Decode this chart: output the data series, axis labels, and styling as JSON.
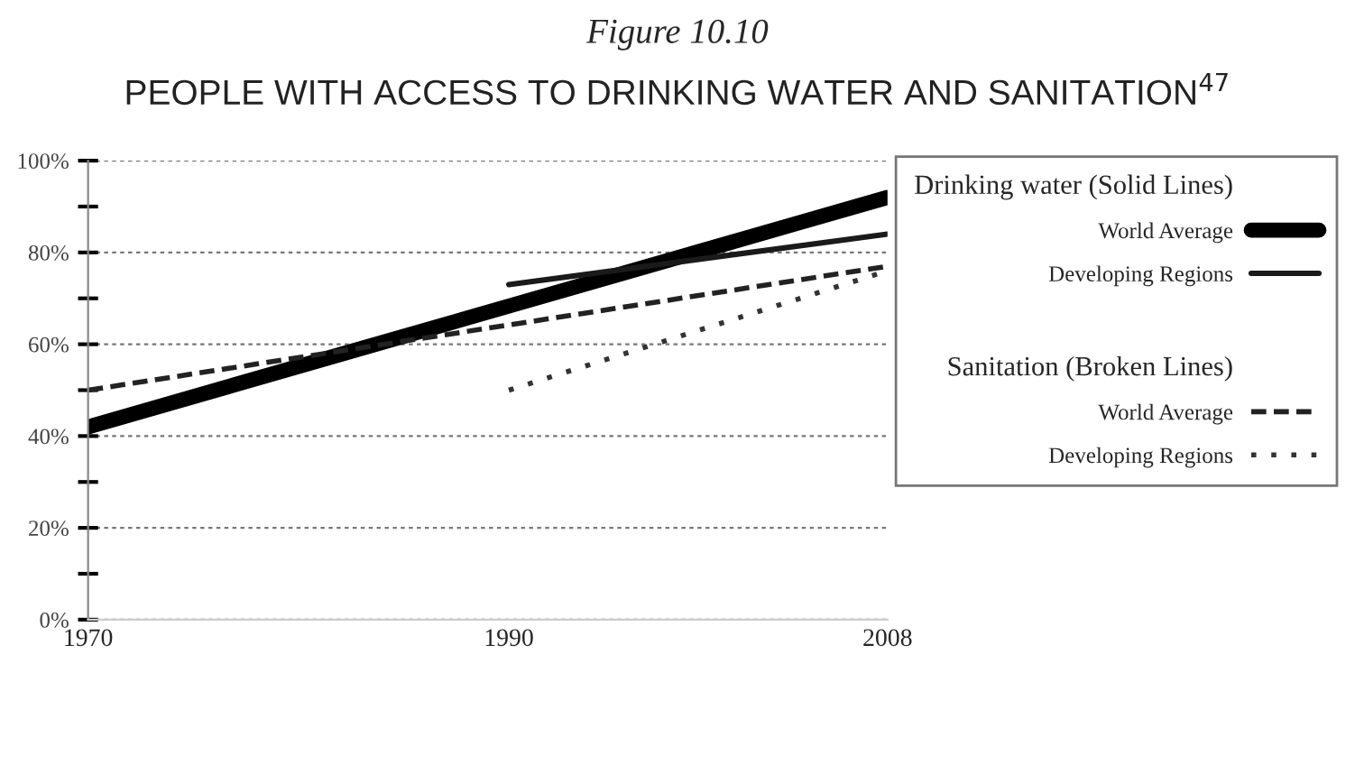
{
  "chart_data": {
    "type": "line",
    "title": "Figure 10.10",
    "subtitle": "PEOPLE WITH ACCESS TO DRINKING WATER AND SANITATION$^{47}$",
    "annotations": [
      "Drinking water (Solid Lines)",
      "Sanitation (Broken Lines)"
    ],
    "series": [
      {
        "name": "World Average",
        "color": "#000000",
        "line_style": "solid",
        "x": [
          1970,
          2008
        ],
        "values": [
          42,
          92
        ]
      },
      {
        "name": "Developing Regions",
        "color": "#1a1a1a",
        "line_style": "solid",
        "x": [
          1990,
          2008
        ],
        "values": [
          73,
          84
        ]
      },
      {
        "name": "World Average",
        "color": "#222222",
        "line_style": "dashed",
        "x": [
          1970,
          2008
        ],
        "values": [
          50,
          77
        ]
      },
      {
        "name": "Developing Regions",
        "color": "#333333",
        "line_style": "dotted",
        "x": [
          1990,
          2008
        ],
        "values": [
          50,
          76
        ]
      }
    ],
    "xlim": [
      1970,
      2008
    ],
    "xticks": [
      1970,
      1990,
      2008
    ],
    "ylim": [
      0,
      100
    ],
    "yticks": [
      {
        "value": 0,
        "label": "0%"
      },
      {
        "value": 10,
        "label": null
      },
      {
        "value": 20,
        "label": "20%"
      },
      {
        "value": 30,
        "label": null
      },
      {
        "value": 40,
        "label": "40%"
      },
      {
        "value": 50,
        "label": null
      },
      {
        "value": 60,
        "label": "60%"
      },
      {
        "value": 70,
        "label": null
      },
      {
        "value": 80,
        "label": "80%"
      },
      {
        "value": 90,
        "label": null
      },
      {
        "value": 100,
        "label": "100%"
      }
    ],
    "grid": "y",
    "legend": "right",
    "marker": "none"
  }
}
